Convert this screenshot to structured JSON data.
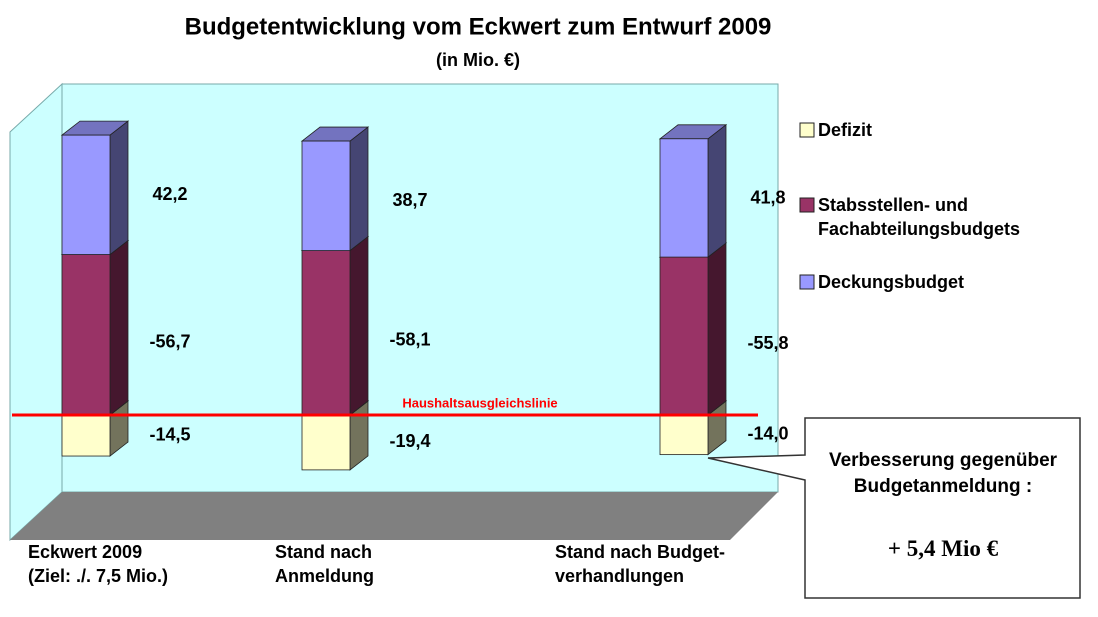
{
  "chart_data": {
    "type": "bar3d-stacked",
    "title": "Budgetentwicklung vom Eckwert zum Entwurf 2009",
    "subtitle": "(in Mio. €)",
    "categories": [
      "Eckwert 2009 (Ziel: ./. 7,5 Mio.)",
      "Stand nach Anmeldung",
      "Stand nach Budget-verhandlungen"
    ],
    "series": [
      {
        "name": "Defizit",
        "color": "#ffffcc",
        "values": [
          -14.5,
          -19.4,
          -14.0
        ],
        "value_labels": [
          "-14,5",
          "-19,4",
          "-14,0"
        ]
      },
      {
        "name": "Stabsstellen- und Fachabteilungsbudgets",
        "color": "#993366",
        "values": [
          -56.7,
          -58.1,
          -55.8
        ],
        "value_labels": [
          "-56,7",
          "-58,1",
          "-55,8"
        ]
      },
      {
        "name": "Deckungsbudget",
        "color": "#9999ff",
        "values": [
          42.2,
          38.7,
          41.8
        ],
        "value_labels": [
          "42,2",
          "38,7",
          "41,8"
        ]
      }
    ],
    "annotations": {
      "line_label": "Haushaltsausgleichslinie",
      "callout_text": "Verbesserung gegenüber Budgetanmeldung :",
      "callout_value": "+ 5,4 Mio €"
    }
  }
}
